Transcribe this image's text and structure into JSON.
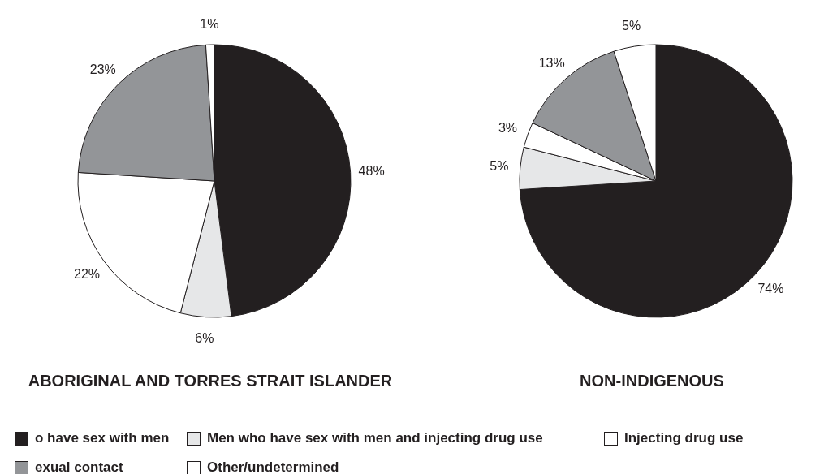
{
  "chart_data": [
    {
      "type": "pie",
      "title": "ABORIGINAL AND TORRES STRAIT ISLANDER",
      "categories": [
        "o have sex with men",
        "Men who have sex with men and injecting drug use",
        "Injecting drug use",
        "exual contact",
        "Other/undetermined"
      ],
      "values": [
        48,
        6,
        22,
        23,
        1
      ],
      "value_labels": [
        "48%",
        "6%",
        "22%",
        "23%",
        "1%"
      ],
      "colors": [
        "#231f20",
        "#e6e7e8",
        "#ffffff",
        "#939598",
        "#ffffff"
      ],
      "legend": "bottom"
    },
    {
      "type": "pie",
      "title": "NON-INDIGENOUS",
      "categories": [
        null,
        null,
        null,
        null,
        null
      ],
      "values": [
        74,
        5,
        3,
        13,
        5
      ],
      "value_labels": [
        "74%",
        "5%",
        "3%",
        "13%",
        "5%"
      ],
      "colors": [
        "#231f20",
        "#e6e7e8",
        "#ffffff",
        "#939598",
        "#ffffff"
      ]
    }
  ]
}
